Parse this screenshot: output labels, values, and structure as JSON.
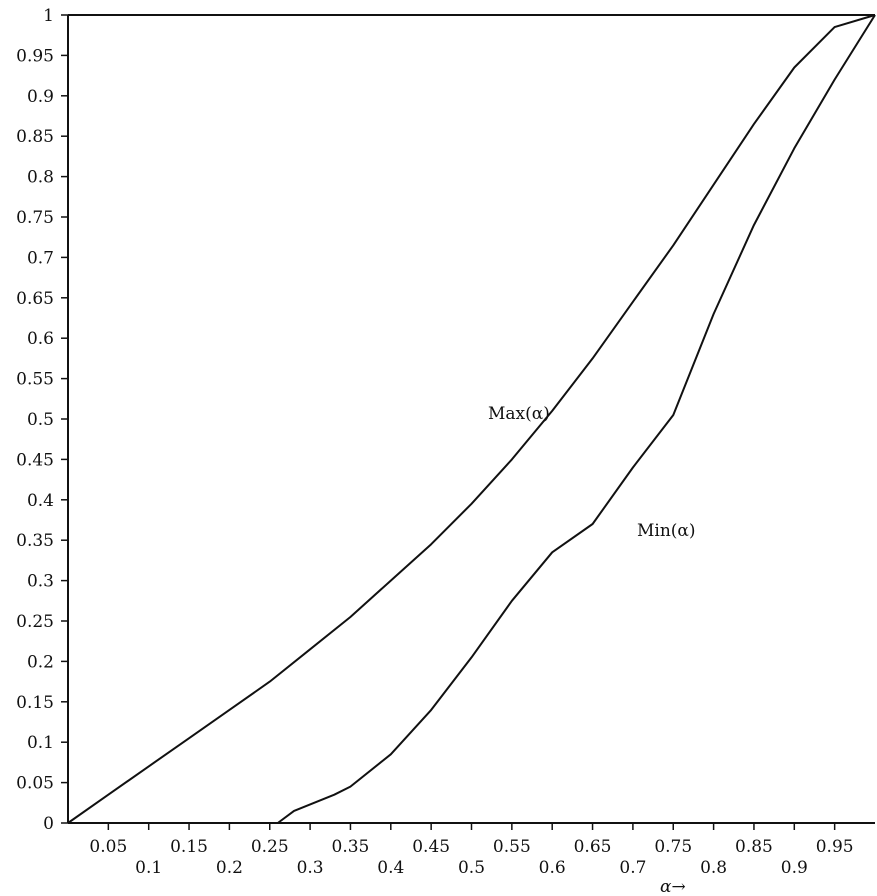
{
  "chart_data": {
    "type": "line",
    "title": "",
    "xlabel": "α→",
    "ylabel": "",
    "xlim": [
      0,
      1
    ],
    "ylim": [
      0,
      1
    ],
    "grid": false,
    "x_ticks": [
      "0.05",
      "0.1",
      "0.15",
      "0.2",
      "0.25",
      "0.3",
      "0.35",
      "0.4",
      "0.45",
      "0.5",
      "0.55",
      "0.6",
      "0.65",
      "0.7",
      "0.75",
      "0.8",
      "0.85",
      "0.9",
      "0.95"
    ],
    "y_ticks": [
      "0",
      "0.05",
      "0.1",
      "0.15",
      "0.2",
      "0.25",
      "0.3",
      "0.35",
      "0.4",
      "0.45",
      "0.5",
      "0.55",
      "0.6",
      "0.65",
      "0.7",
      "0.75",
      "0.8",
      "0.85",
      "0.9",
      "0.95",
      "1"
    ],
    "series": [
      {
        "name": "Max(α)",
        "x": [
          0,
          0.05,
          0.1,
          0.15,
          0.2,
          0.25,
          0.3,
          0.35,
          0.4,
          0.45,
          0.5,
          0.55,
          0.6,
          0.65,
          0.7,
          0.75,
          0.8,
          0.85,
          0.9,
          0.95,
          1
        ],
        "y": [
          0,
          0.035,
          0.07,
          0.105,
          0.14,
          0.175,
          0.215,
          0.255,
          0.3,
          0.345,
          0.395,
          0.45,
          0.51,
          0.575,
          0.645,
          0.715,
          0.79,
          0.865,
          0.935,
          0.985,
          1
        ]
      },
      {
        "name": "Min(α)",
        "x": [
          0.26,
          0.28,
          0.33,
          0.35,
          0.4,
          0.45,
          0.5,
          0.55,
          0.6,
          0.65,
          0.7,
          0.75,
          0.8,
          0.85,
          0.9,
          0.95,
          1
        ],
        "y": [
          0,
          0.015,
          0.035,
          0.045,
          0.085,
          0.14,
          0.205,
          0.275,
          0.335,
          0.37,
          0.44,
          0.505,
          0.63,
          0.74,
          0.835,
          0.92,
          1
        ]
      }
    ]
  }
}
